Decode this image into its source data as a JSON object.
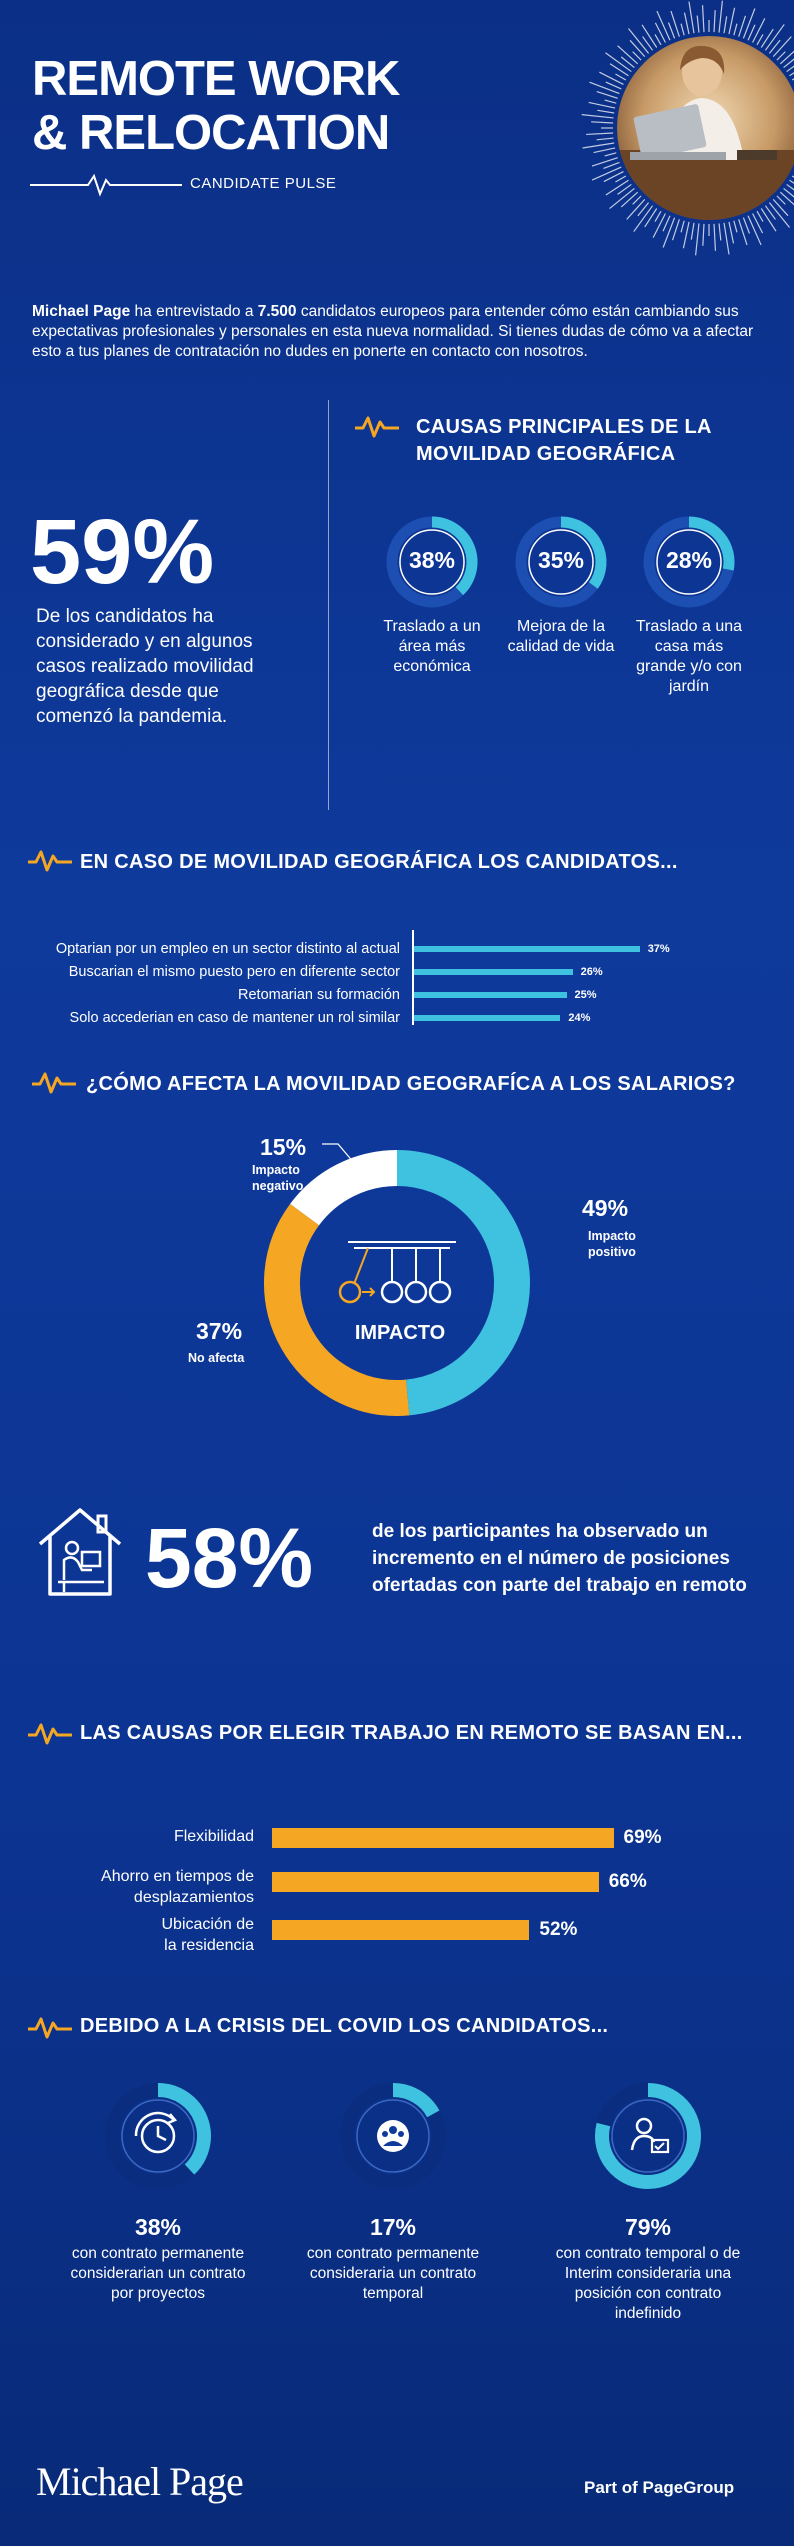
{
  "header": {
    "title_line1": "REMOTE WORK",
    "title_line2": "& RELOCATION",
    "subtitle": "CANDIDATE PULSE"
  },
  "intro": {
    "brand": "Michael Page",
    "text_before_number": " ha entrevistado a ",
    "number": "7.500",
    "text_after_number": " candidatos europeos para entender cómo están cambiando sus expectativas profesionales y personales en esta nueva normalidad. Si tienes dudas de cómo va a afectar esto a tus planes de contratación no dudes en ponerte en contacto con nosotros."
  },
  "mobility_stat": {
    "value": "59%",
    "description": "De los candidatos ha considerado y en algunos casos realizado movilidad geográfica desde que comenzó la pandemia."
  },
  "main_causes": {
    "heading_line1": "CAUSAS PRINCIPALES DE LA",
    "heading_line2": "MOVILIDAD GEOGRÁFICA",
    "items": [
      {
        "value": "38%",
        "fraction": 0.38,
        "label": "Traslado a un área más económica"
      },
      {
        "value": "35%",
        "fraction": 0.35,
        "label": "Mejora de la calidad de vida"
      },
      {
        "value": "28%",
        "fraction": 0.28,
        "label": "Traslado a una casa más grande y/o con jardín"
      }
    ]
  },
  "candidates_mobility": {
    "heading": "EN CASO DE MOVILIDAD GEOGRÁFICA LOS CANDIDATOS...",
    "items": [
      {
        "label": "Optarian por un empleo en un sector distinto al actual",
        "value": 37,
        "display": "37%"
      },
      {
        "label": "Buscarian el mismo puesto pero en diferente sector",
        "value": 26,
        "display": "26%"
      },
      {
        "label": "Retomarian su formación",
        "value": 25,
        "display": "25%"
      },
      {
        "label": "Solo accederian en caso de mantener un rol similar",
        "value": 24,
        "display": "24%"
      }
    ]
  },
  "salaries": {
    "heading": "¿CÓMO AFECTA LA MOVILIDAD GEOGRAFÍCA  A LOS SALARIOS?",
    "center_label": "IMPACTO",
    "slices": [
      {
        "label_line1": "Impacto",
        "label_line2": "positivo",
        "display": "49%",
        "value": 49,
        "color": "#3fc1e0"
      },
      {
        "label_line1": "No afecta",
        "label_line2": "",
        "display": "37%",
        "value": 37,
        "color": "#f5a623"
      },
      {
        "label_line1": "Impacto",
        "label_line2": "negativo",
        "display": "15%",
        "value": 15,
        "color": "#ffffff"
      }
    ]
  },
  "remote_offers": {
    "value": "58%",
    "description": "de los participantes ha observado un incremento en el número de posiciones ofertadas con parte del trabajo en remoto"
  },
  "remote_reasons": {
    "heading": "LAS CAUSAS POR ELEGIR TRABAJO EN REMOTO SE BASAN EN...",
    "items": [
      {
        "label_line1": "Flexibilidad",
        "label_line2": "",
        "value": 69,
        "display": "69%"
      },
      {
        "label_line1": "Ahorro en tiempos  de",
        "label_line2": "desplazamientos",
        "value": 66,
        "display": "66%"
      },
      {
        "label_line1": "Ubicación de",
        "label_line2": "la residencia",
        "value": 52,
        "display": "52%"
      }
    ]
  },
  "covid": {
    "heading": "DEBIDO A LA CRISIS DEL COVID LOS CANDIDATOS...",
    "items": [
      {
        "display": "38%",
        "fraction": 0.38,
        "icon": "clock-icon",
        "description": "con contrato permanente considerarian un contrato  por proyectos"
      },
      {
        "display": "17%",
        "fraction": 0.17,
        "icon": "team-icon",
        "description": "con contrato permanente consideraria un contrato temporal"
      },
      {
        "display": "79%",
        "fraction": 0.79,
        "icon": "person-laptop-icon",
        "description": "con contrato temporal o de Interim consideraria una posición con contrato indefinido"
      }
    ]
  },
  "footer": {
    "logo": "Michael Page",
    "tagline": "Part of PageGroup"
  },
  "colors": {
    "accent_orange": "#f5a623",
    "accent_cyan": "#3fc1e0",
    "background": "#0e3a9c"
  }
}
